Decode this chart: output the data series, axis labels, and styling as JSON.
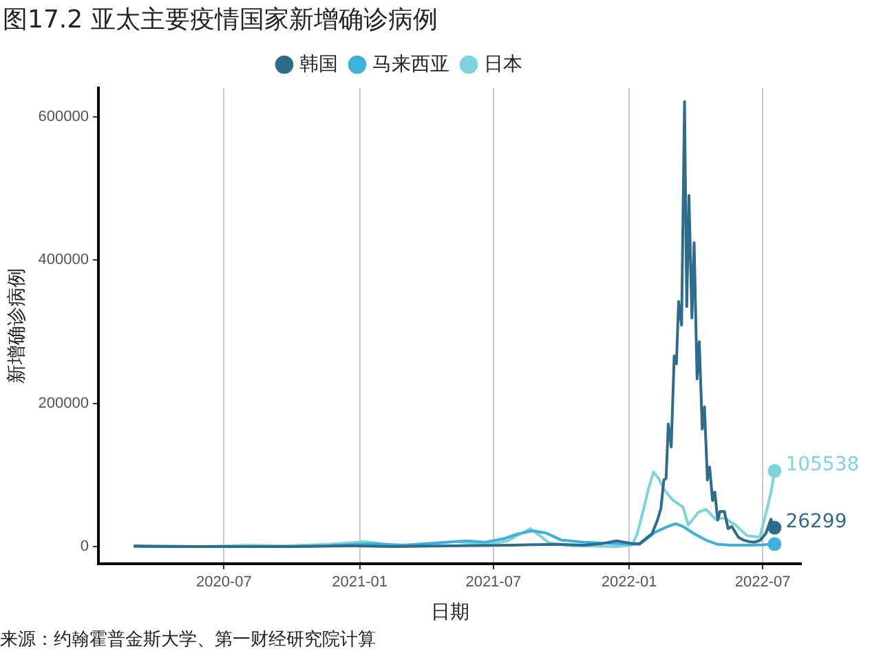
{
  "chart_data": {
    "type": "line",
    "title": "图17.2 亚太主要疫情国家新增确诊病例",
    "xlabel": "日期",
    "ylabel": "新增确诊病例",
    "xlim": [
      "2020-01-13",
      "2022-08-22"
    ],
    "ylim": [
      -24000,
      640000
    ],
    "xticks": [
      "2020-07",
      "2021-01",
      "2021-07",
      "2022-01",
      "2022-07"
    ],
    "yticks": [
      0,
      200000,
      400000,
      600000
    ],
    "grid": "x",
    "legend": "top",
    "annotations": [
      {
        "text": "105538",
        "x": "2022-07-17",
        "y": 105538
      },
      {
        "text": "26299",
        "x": "2022-07-17",
        "y": 26299
      },
      "来源：约翰霍普金斯大学、第一财经研究院计算"
    ],
    "series": [
      {
        "name": "韩国",
        "color": "#2f6b8a",
        "x": [
          "2020-03-01",
          "2020-04-15",
          "2020-08-27",
          "2020-10-01",
          "2020-12-25",
          "2021-02-15",
          "2021-05-01",
          "2021-07-25",
          "2021-09-25",
          "2021-11-01",
          "2021-11-25",
          "2021-12-15",
          "2022-01-05",
          "2022-01-15",
          "2022-01-26",
          "2022-02-01",
          "2022-02-08",
          "2022-02-13",
          "2022-02-17",
          "2022-02-20",
          "2022-02-23",
          "2022-02-27",
          "2022-03-03",
          "2022-03-06",
          "2022-03-09",
          "2022-03-13",
          "2022-03-17",
          "2022-03-20",
          "2022-03-23",
          "2022-03-27",
          "2022-03-30",
          "2022-04-03",
          "2022-04-06",
          "2022-04-10",
          "2022-04-13",
          "2022-04-17",
          "2022-04-20",
          "2022-04-24",
          "2022-04-27",
          "2022-05-01",
          "2022-05-04",
          "2022-05-10",
          "2022-05-15",
          "2022-05-20",
          "2022-05-29",
          "2022-06-05",
          "2022-06-12",
          "2022-06-20",
          "2022-06-28",
          "2022-07-05",
          "2022-07-12",
          "2022-07-17"
        ],
        "values": [
          1000,
          0,
          0,
          0,
          1000,
          0,
          1000,
          2000,
          3000,
          2000,
          4000,
          8000,
          4000,
          4000,
          13000,
          18000,
          36000,
          53000,
          93000,
          95000,
          171000,
          139000,
          266000,
          255000,
          342000,
          309000,
          621000,
          335000,
          490000,
          319000,
          424000,
          234000,
          286000,
          164000,
          195000,
          93000,
          111000,
          64000,
          76000,
          37000,
          49000,
          49000,
          25000,
          28000,
          13000,
          9000,
          7000,
          6000,
          9000,
          18000,
          38000,
          26299
        ]
      },
      {
        "name": "马来西亚",
        "color": "#3fb0d8",
        "x": [
          "2020-03-01",
          "2020-06-01",
          "2020-10-01",
          "2020-11-15",
          "2021-01-15",
          "2021-03-01",
          "2021-05-25",
          "2021-06-20",
          "2021-07-15",
          "2021-08-01",
          "2021-08-23",
          "2021-09-10",
          "2021-10-01",
          "2021-11-01",
          "2021-12-15",
          "2022-01-15",
          "2022-02-05",
          "2022-02-20",
          "2022-03-05",
          "2022-03-15",
          "2022-03-30",
          "2022-04-15",
          "2022-05-01",
          "2022-05-20",
          "2022-06-15",
          "2022-07-01",
          "2022-07-17"
        ],
        "values": [
          0,
          0,
          0,
          1000,
          4000,
          2000,
          8000,
          6000,
          11000,
          17000,
          22000,
          19000,
          9000,
          6000,
          4000,
          3000,
          20000,
          27000,
          32000,
          28000,
          18000,
          9000,
          3000,
          2000,
          2000,
          2500,
          3500
        ]
      },
      {
        "name": "日本",
        "color": "#7fd3dc",
        "x": [
          "2020-03-01",
          "2020-04-12",
          "2020-06-01",
          "2020-08-07",
          "2020-09-20",
          "2020-11-20",
          "2021-01-08",
          "2021-02-20",
          "2021-04-01",
          "2021-05-12",
          "2021-06-20",
          "2021-07-20",
          "2021-08-20",
          "2021-09-15",
          "2021-10-15",
          "2021-12-15",
          "2022-01-05",
          "2022-01-12",
          "2022-01-20",
          "2022-01-27",
          "2022-02-03",
          "2022-02-10",
          "2022-02-17",
          "2022-03-01",
          "2022-03-15",
          "2022-03-22",
          "2022-04-05",
          "2022-04-15",
          "2022-04-28",
          "2022-05-10",
          "2022-05-25",
          "2022-06-10",
          "2022-06-27",
          "2022-07-05",
          "2022-07-12",
          "2022-07-17"
        ],
        "values": [
          0,
          1000,
          0,
          2000,
          1000,
          3000,
          7000,
          1000,
          3000,
          7000,
          2000,
          8000,
          25000,
          5000,
          1000,
          0,
          2000,
          18000,
          50000,
          80000,
          104000,
          95000,
          80000,
          65000,
          55000,
          30000,
          48000,
          52000,
          38000,
          40000,
          30000,
          15000,
          13000,
          45000,
          75000,
          105538
        ]
      }
    ]
  }
}
